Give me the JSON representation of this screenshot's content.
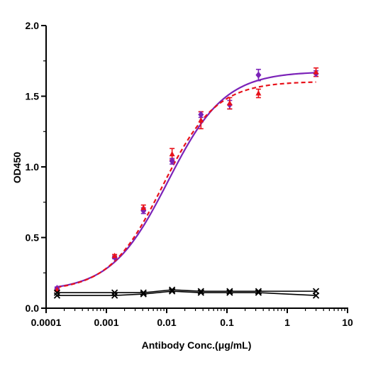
{
  "chart_data": {
    "type": "line",
    "xlabel": "Antibody Conc.(μg/mL)",
    "ylabel": "OD450",
    "xscale": "log",
    "xlim": [
      0.0001,
      10
    ],
    "ylim": [
      0.0,
      2.0
    ],
    "x_ticks": [
      "0.0001",
      "0.001",
      "0.01",
      "0.1",
      "1",
      "10"
    ],
    "y_ticks": [
      "0.0",
      "0.5",
      "1.0",
      "1.5",
      "2.0"
    ],
    "grid": false,
    "legend": "none",
    "x": [
      0.000152,
      0.00137,
      0.00412,
      0.0123,
      0.037,
      0.111,
      0.333,
      3.0
    ],
    "series": [
      {
        "color": "#7b22b8",
        "marker": "diamond",
        "line_style": "solid",
        "y": [
          0.14,
          0.36,
          0.69,
          1.04,
          1.37,
          1.44,
          1.65,
          1.66
        ],
        "err": [
          0.01,
          0.01,
          0.02,
          0.02,
          0.02,
          0.03,
          0.04,
          0.02
        ],
        "fit": {
          "bottom": 0.12,
          "top": 1.675,
          "ec50": 0.0105,
          "hill": 0.92
        }
      },
      {
        "color": "#e8111a",
        "marker": "triangle",
        "line_style": "dashed",
        "y": [
          0.13,
          0.37,
          0.71,
          1.09,
          1.33,
          1.45,
          1.52,
          1.67
        ],
        "err": [
          0.01,
          0.01,
          0.02,
          0.04,
          0.06,
          0.04,
          0.03,
          0.03
        ],
        "fit": {
          "bottom": 0.12,
          "top": 1.605,
          "ec50": 0.0085,
          "hill": 0.98
        }
      },
      {
        "color": "#000000",
        "marker": "x",
        "line_style": "solid",
        "y": [
          0.11,
          0.11,
          0.11,
          0.13,
          0.12,
          0.12,
          0.12,
          0.12
        ],
        "err": [
          0,
          0,
          0,
          0,
          0,
          0,
          0,
          0
        ]
      },
      {
        "color": "#000000",
        "marker": "x",
        "line_style": "solid",
        "y": [
          0.09,
          0.09,
          0.1,
          0.12,
          0.11,
          0.11,
          0.11,
          0.09
        ],
        "err": [
          0,
          0,
          0,
          0,
          0,
          0,
          0,
          0
        ]
      }
    ]
  }
}
